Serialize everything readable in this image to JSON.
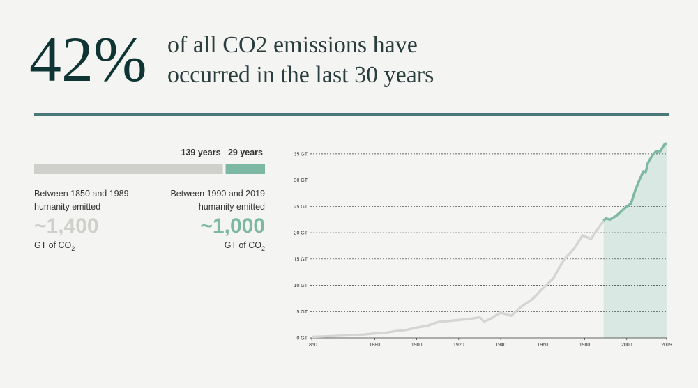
{
  "headline": {
    "figure": "42%",
    "lines": [
      "of all CO2 emissions have",
      "occurred in the last 30 years"
    ]
  },
  "period_bar": {
    "values": [
      139,
      29
    ],
    "value_labels": [
      "139 years",
      "29 years"
    ],
    "colors": [
      "#cfcfcb",
      "#7db8a5"
    ]
  },
  "periods": [
    {
      "lines": [
        "Between 1850 and 1989",
        "humanity emitted"
      ],
      "amount": "~1,400",
      "unit": "GT of CO",
      "unit_sub": "2",
      "color": "#cfcfcb"
    },
    {
      "lines": [
        "Between 1990 and 2019",
        "humanity emitted"
      ],
      "amount": "~1,000",
      "unit": "GT of CO",
      "unit_sub": "2",
      "color": "#7db8a5"
    }
  ],
  "chart_data": {
    "type": "line",
    "x": [
      1850,
      1855,
      1860,
      1865,
      1870,
      1875,
      1880,
      1885,
      1890,
      1895,
      1900,
      1905,
      1910,
      1915,
      1920,
      1925,
      1930,
      1932,
      1935,
      1940,
      1945,
      1950,
      1955,
      1960,
      1965,
      1970,
      1975,
      1979,
      1980,
      1983,
      1985,
      1989,
      1990,
      1992,
      1995,
      1998,
      2000,
      2002,
      2004,
      2006,
      2008,
      2009,
      2010,
      2012,
      2014,
      2016,
      2018,
      2019
    ],
    "series": [
      {
        "color": "#d3d6d4",
        "highlight_color": "#7db8a5",
        "values": [
          0.2,
          0.26,
          0.35,
          0.45,
          0.53,
          0.65,
          0.85,
          0.95,
          1.3,
          1.5,
          1.95,
          2.3,
          3.0,
          3.2,
          3.4,
          3.6,
          3.9,
          3.1,
          3.6,
          4.8,
          4.2,
          6.0,
          7.3,
          9.4,
          11.3,
          14.8,
          17.0,
          19.5,
          19.3,
          18.8,
          20.0,
          22.3,
          22.7,
          22.5,
          23.2,
          24.3,
          25.0,
          25.5,
          28.0,
          30.0,
          31.7,
          31.4,
          33.2,
          34.6,
          35.5,
          35.5,
          36.8,
          37.0
        ]
      }
    ],
    "highlight_start": 1989,
    "highlight_fill": "#d9e8e2",
    "xlim": [
      1850,
      2019
    ],
    "ylim": [
      0,
      37.5
    ],
    "xticks": [
      1850,
      1880,
      1900,
      1920,
      1940,
      1960,
      1980,
      2000,
      2019
    ],
    "yticks": [
      {
        "value": 0,
        "label": "0 GT"
      },
      {
        "value": 5,
        "label": "5 GT"
      },
      {
        "value": 10,
        "label": "10 GT"
      },
      {
        "value": 15,
        "label": "15 GT"
      },
      {
        "value": 20,
        "label": "20 GT"
      },
      {
        "value": 25,
        "label": "25 GT"
      },
      {
        "value": 30,
        "label": "30 GT"
      },
      {
        "value": 35,
        "label": "35 GT"
      }
    ],
    "grid": true
  }
}
